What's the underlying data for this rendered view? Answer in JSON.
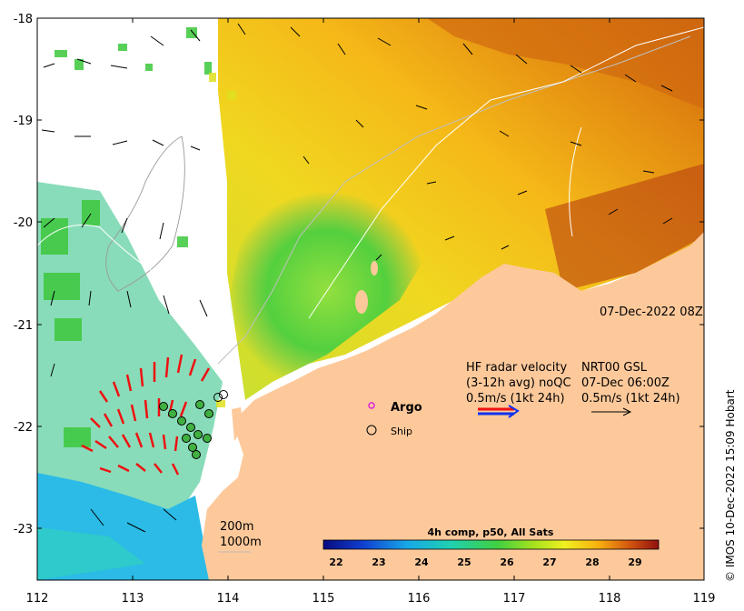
{
  "map": {
    "lon_ticks": [
      "112",
      "113",
      "114",
      "115",
      "116",
      "117",
      "118",
      "119"
    ],
    "lat_ticks": [
      "-18",
      "-19",
      "-20",
      "-21",
      "-22",
      "-23"
    ],
    "timestamp": "07-Dec-2022 08Z",
    "hf_radar": {
      "line1": "HF radar velocity",
      "line2": "(3-12h avg) noQC",
      "line3": "0.5m/s (1kt 24h)"
    },
    "nrt": {
      "line1": "NRT00 GSL",
      "line2": "07-Dec 06:00Z",
      "line3": "0.5m/s (1kt 24h)"
    },
    "legend": {
      "argo": "Argo",
      "ship": "Ship"
    },
    "depth": {
      "d200": "200m",
      "d1000": "1000m"
    },
    "colorbar": {
      "title": "4h comp, p50, All Sats",
      "ticks": [
        "22",
        "23",
        "24",
        "25",
        "26",
        "27",
        "28",
        "29"
      ]
    },
    "credit": "© IMOS 10-Dec-2022 15:09 Hobart",
    "colors": {
      "land": "#fdc99b",
      "warm": "#e07a10",
      "green": "#3ecf48",
      "cyan": "#2bbbe6",
      "radar_red": "#ee1111",
      "radar_blue": "#1133ee"
    }
  }
}
